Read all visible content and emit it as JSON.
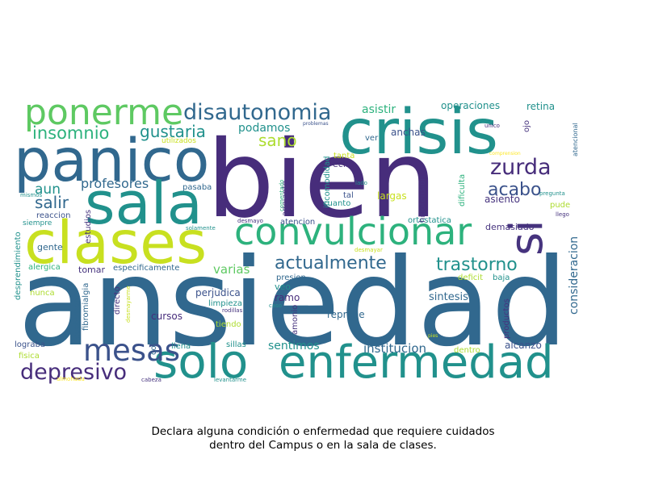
{
  "chart_data": {
    "type": "wordcloud",
    "caption": [
      "Declara alguna condición o enfermedad que requiere cuidados",
      "dentro del Campus o en la sala de clases."
    ],
    "palette": "viridis",
    "words": [
      {
        "text": "ansiedad",
        "size": 5
      },
      {
        "text": "bien",
        "size": 5
      },
      {
        "text": "panico",
        "size": 4
      },
      {
        "text": "crisis",
        "size": 4
      },
      {
        "text": "sala",
        "size": 4
      },
      {
        "text": "clases",
        "size": 4
      },
      {
        "text": "solo",
        "size": 4
      },
      {
        "text": "enfermedad",
        "size": 4
      },
      {
        "text": "ponerme",
        "size": 3
      },
      {
        "text": "convulcionar",
        "size": 3
      },
      {
        "text": "si",
        "size": 3
      },
      {
        "text": "mesas",
        "size": 3
      },
      {
        "text": "disautonomia",
        "size": 2
      },
      {
        "text": "depresivo",
        "size": 2
      },
      {
        "text": "zurda",
        "size": 2
      },
      {
        "text": "actualmente",
        "size": 2
      },
      {
        "text": "trastorno",
        "size": 2
      },
      {
        "text": "insomnio",
        "size": 2
      },
      {
        "text": "gustaria",
        "size": 2
      },
      {
        "text": "acabo",
        "size": 2
      },
      {
        "text": "sano",
        "size": 2
      },
      {
        "text": "salir",
        "size": 2
      },
      {
        "text": "aun",
        "size": 2
      },
      {
        "text": "profesores",
        "size": 1
      },
      {
        "text": "podamos",
        "size": 1
      },
      {
        "text": "asistir",
        "size": 1
      },
      {
        "text": "operaciones",
        "size": 1
      },
      {
        "text": "retina",
        "size": 1
      },
      {
        "text": "anchas",
        "size": 1
      },
      {
        "text": "varias",
        "size": 1
      },
      {
        "text": "institucion",
        "size": 1
      },
      {
        "text": "sentimos",
        "size": 1
      },
      {
        "text": "sintesis",
        "size": 1
      },
      {
        "text": "consideracion",
        "size": 1
      },
      {
        "text": "asiento",
        "size": 1
      },
      {
        "text": "alcanzo",
        "size": 1
      },
      {
        "text": "reprobe",
        "size": 1
      },
      {
        "text": "largas",
        "size": 1
      },
      {
        "text": "demasiado",
        "size": 1
      },
      {
        "text": "perjudica",
        "size": 1
      },
      {
        "text": "cursos",
        "size": 1
      },
      {
        "text": "gente",
        "size": 1
      },
      {
        "text": "ramo",
        "size": 1
      },
      {
        "text": "veo",
        "size": 1
      },
      {
        "text": "tomar",
        "size": 1
      },
      {
        "text": "especificamente",
        "size": 1
      },
      {
        "text": "echo",
        "size": 1
      },
      {
        "text": "pasaba",
        "size": 1
      },
      {
        "text": "presion",
        "size": 1
      },
      {
        "text": "atencion",
        "size": 1
      },
      {
        "text": "lograba",
        "size": 1
      },
      {
        "text": "llena",
        "size": 1
      },
      {
        "text": "sillas",
        "size": 1
      },
      {
        "text": "ver",
        "size": 1
      },
      {
        "text": "cuanto",
        "size": 1
      },
      {
        "text": "tal",
        "size": 1
      },
      {
        "text": "tanta",
        "size": 1
      },
      {
        "text": "ortostatica",
        "size": 1
      },
      {
        "text": "pude",
        "size": 1
      },
      {
        "text": "dentro",
        "size": 1
      },
      {
        "text": "baja",
        "size": 1
      },
      {
        "text": "fisica",
        "size": 1
      },
      {
        "text": "nunca",
        "size": 1
      },
      {
        "text": "alergica",
        "size": 1
      },
      {
        "text": "reaccion",
        "size": 1
      },
      {
        "text": "siempre",
        "size": 1
      },
      {
        "text": "estudios",
        "size": 1
      },
      {
        "text": "limpieza",
        "size": 1
      },
      {
        "text": "tiendo",
        "size": 1
      },
      {
        "text": "contacto",
        "size": 1
      },
      {
        "text": "directo",
        "size": 1
      },
      {
        "text": "amonio",
        "size": 1
      },
      {
        "text": "productos",
        "size": 1
      },
      {
        "text": "deficit",
        "size": 1
      },
      {
        "text": "hipotension",
        "size": 1
      },
      {
        "text": "dificulta",
        "size": 1
      },
      {
        "text": "incomodidad",
        "size": 1
      },
      {
        "text": "adelante",
        "size": 1
      },
      {
        "text": "ojo",
        "size": 1
      },
      {
        "text": "fibromialgia",
        "size": 1
      },
      {
        "text": "cuaternario",
        "size": 1
      },
      {
        "text": "desprendimiento",
        "size": 1
      },
      {
        "text": "atencional",
        "size": 0
      },
      {
        "text": "unico",
        "size": 0
      },
      {
        "text": "comprension",
        "size": 0
      },
      {
        "text": "utilizados",
        "size": 0
      },
      {
        "text": "problemas",
        "size": 0
      },
      {
        "text": "mismos",
        "size": 0
      },
      {
        "text": "lado",
        "size": 0
      },
      {
        "text": "pregunta",
        "size": 0
      },
      {
        "text": "llego",
        "size": 0
      },
      {
        "text": "desmayo",
        "size": 0
      },
      {
        "text": "solamente",
        "size": 0
      },
      {
        "text": "comentado",
        "size": 0
      },
      {
        "text": "desmayar",
        "size": 0
      },
      {
        "text": "rodillas",
        "size": 0
      },
      {
        "text": "caso",
        "size": 0
      },
      {
        "text": "pies",
        "size": 0
      },
      {
        "text": "desmayarme",
        "size": 0
      },
      {
        "text": "cabeza",
        "size": 0
      },
      {
        "text": "levantarme",
        "size": 0
      },
      {
        "text": "almohada",
        "size": 0
      }
    ]
  }
}
